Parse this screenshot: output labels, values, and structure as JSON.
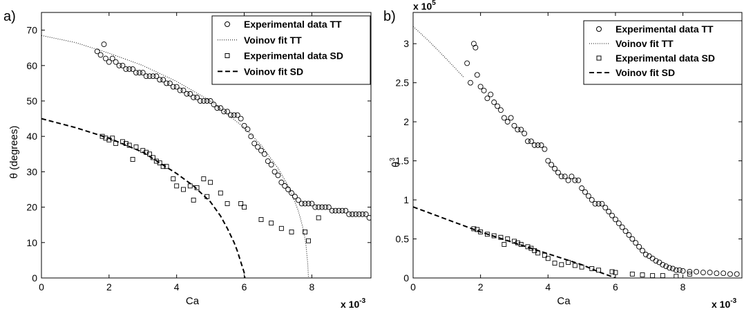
{
  "chart_data": [
    {
      "type": "scatter",
      "panel_label": "a)",
      "xlabel": "Ca",
      "ylabel": "θ (degrees)",
      "x_exponent": "x 10",
      "x_exponent_power": "-3",
      "xlim": [
        0,
        9.75
      ],
      "ylim": [
        0,
        75
      ],
      "xticks": [
        0,
        2,
        4,
        6,
        8
      ],
      "yticks": [
        0,
        10,
        20,
        30,
        40,
        50,
        60,
        70
      ],
      "legend": [
        "Experimental data TT",
        "Voinov fit TT",
        "Experimental data SD",
        "Voinov fit SD"
      ],
      "legend_position": "top-right",
      "series": [
        {
          "name": "Experimental data TT",
          "marker": "circle",
          "x": [
            1.65,
            1.75,
            1.85,
            1.9,
            2.0,
            2.1,
            2.2,
            2.3,
            2.4,
            2.5,
            2.6,
            2.7,
            2.8,
            2.9,
            3.0,
            3.1,
            3.2,
            3.3,
            3.4,
            3.5,
            3.6,
            3.7,
            3.8,
            3.9,
            4.0,
            4.1,
            4.2,
            4.3,
            4.4,
            4.5,
            4.6,
            4.7,
            4.8,
            4.9,
            5.0,
            5.1,
            5.2,
            5.3,
            5.4,
            5.5,
            5.6,
            5.7,
            5.8,
            5.9,
            6.0,
            6.1,
            6.2,
            6.3,
            6.4,
            6.5,
            6.6,
            6.7,
            6.8,
            6.9,
            7.0,
            7.1,
            7.2,
            7.3,
            7.4,
            7.5,
            7.6,
            7.7,
            7.8,
            7.9,
            8.0,
            8.1,
            8.2,
            8.3,
            8.4,
            8.5,
            8.6,
            8.7,
            8.8,
            8.9,
            9.0,
            9.1,
            9.2,
            9.3,
            9.4,
            9.5,
            9.6,
            9.7
          ],
          "y": [
            64,
            63,
            66,
            62,
            61,
            62,
            61,
            60,
            60,
            59,
            59,
            59,
            58,
            58,
            58,
            57,
            57,
            57,
            57,
            56,
            56,
            55,
            55,
            54,
            54,
            53,
            53,
            52,
            52,
            51,
            51,
            50,
            50,
            50,
            50,
            49,
            48,
            48,
            47,
            47,
            46,
            46,
            46,
            45,
            43,
            42,
            40,
            38,
            37,
            36,
            35,
            33,
            32,
            30,
            29,
            27,
            26,
            25,
            24,
            23,
            22,
            21,
            21,
            21,
            21,
            20,
            20,
            20,
            20,
            20,
            19,
            19,
            19,
            19,
            19,
            18,
            18,
            18,
            18,
            18,
            18,
            17
          ]
        },
        {
          "name": "Voinov fit TT",
          "line": "dotted",
          "x": [
            0,
            1,
            2,
            3,
            4,
            5,
            6,
            6.5,
            7,
            7.3,
            7.5,
            7.6,
            7.7,
            7.75,
            7.8,
            7.83,
            7.86,
            7.88,
            7.9
          ],
          "y": [
            68.5,
            66.5,
            63.5,
            60,
            55.5,
            50,
            42.5,
            37.5,
            31,
            26,
            21.5,
            19,
            15.5,
            13.5,
            11,
            9,
            6,
            4,
            0
          ]
        },
        {
          "name": "Experimental data SD",
          "marker": "square",
          "x": [
            1.8,
            1.9,
            2.0,
            2.1,
            2.2,
            2.4,
            2.5,
            2.6,
            2.7,
            2.8,
            3.0,
            3.1,
            3.2,
            3.3,
            3.4,
            3.5,
            3.6,
            3.7,
            3.9,
            4.0,
            4.2,
            4.4,
            4.5,
            4.6,
            4.8,
            4.9,
            5.0,
            5.3,
            5.5,
            5.9,
            6.0,
            6.5,
            6.8,
            7.1,
            7.4,
            7.8,
            7.9,
            8.2
          ],
          "y": [
            40,
            39.5,
            39,
            39.5,
            38,
            38.5,
            38,
            37.5,
            33.5,
            37,
            36,
            35.5,
            35,
            34,
            33,
            32.5,
            31.5,
            31.5,
            28,
            26,
            25,
            26,
            22,
            25.5,
            28,
            23,
            27,
            24,
            21,
            21,
            20,
            16.5,
            15.5,
            14,
            13,
            13,
            10.5,
            17
          ]
        },
        {
          "name": "Voinov fit SD",
          "line": "dashed",
          "x": [
            0,
            1,
            2,
            3,
            4,
            4.5,
            5,
            5.3,
            5.5,
            5.7,
            5.8,
            5.9,
            5.95,
            6.0,
            6.02
          ],
          "y": [
            45,
            42.5,
            39.5,
            35.5,
            29.5,
            26,
            21.5,
            17.5,
            14,
            10,
            7.5,
            4.5,
            3,
            1.5,
            0
          ]
        }
      ]
    },
    {
      "type": "scatter",
      "panel_label": "b)",
      "xlabel": "Ca",
      "ylabel": "θ",
      "ylabel_power": "3",
      "x_exponent": "x 10",
      "x_exponent_power": "-3",
      "y_exponent": "x 10",
      "y_exponent_power": "5",
      "xlim": [
        0,
        9.75
      ],
      "ylim": [
        0,
        3.4
      ],
      "xticks": [
        0,
        2,
        4,
        6,
        8
      ],
      "yticks": [
        0,
        0.5,
        1,
        1.5,
        2,
        2.5,
        3
      ],
      "legend": [
        "Experimental data TT",
        "Voinov fit TT",
        "Experimental data SD",
        "Voinov fit SD"
      ],
      "legend_position": "top-right",
      "series": [
        {
          "name": "Experimental data TT",
          "marker": "circle",
          "x": [
            1.6,
            1.7,
            1.8,
            1.85,
            1.9,
            2.0,
            2.1,
            2.2,
            2.3,
            2.4,
            2.5,
            2.6,
            2.7,
            2.8,
            2.9,
            3.0,
            3.1,
            3.2,
            3.3,
            3.4,
            3.5,
            3.6,
            3.7,
            3.8,
            3.9,
            4.0,
            4.1,
            4.2,
            4.3,
            4.4,
            4.5,
            4.6,
            4.7,
            4.8,
            4.9,
            5.0,
            5.1,
            5.2,
            5.3,
            5.4,
            5.5,
            5.6,
            5.7,
            5.8,
            5.9,
            6.0,
            6.1,
            6.2,
            6.3,
            6.4,
            6.5,
            6.6,
            6.7,
            6.8,
            6.9,
            7.0,
            7.1,
            7.2,
            7.3,
            7.4,
            7.5,
            7.6,
            7.7,
            7.8,
            7.9,
            8.0,
            8.2,
            8.4,
            8.6,
            8.8,
            9.0,
            9.2,
            9.4,
            9.6
          ],
          "y": [
            2.75,
            2.5,
            3.0,
            2.95,
            2.6,
            2.45,
            2.4,
            2.3,
            2.35,
            2.25,
            2.2,
            2.15,
            2.05,
            2.0,
            2.05,
            1.95,
            1.9,
            1.9,
            1.85,
            1.75,
            1.75,
            1.7,
            1.7,
            1.7,
            1.65,
            1.5,
            1.45,
            1.4,
            1.35,
            1.3,
            1.3,
            1.25,
            1.3,
            1.25,
            1.25,
            1.15,
            1.1,
            1.05,
            1.0,
            0.95,
            0.95,
            0.95,
            0.9,
            0.85,
            0.8,
            0.75,
            0.7,
            0.65,
            0.6,
            0.55,
            0.5,
            0.45,
            0.4,
            0.35,
            0.3,
            0.28,
            0.25,
            0.22,
            0.2,
            0.17,
            0.15,
            0.13,
            0.12,
            0.1,
            0.1,
            0.09,
            0.08,
            0.08,
            0.07,
            0.07,
            0.06,
            0.06,
            0.05,
            0.05
          ]
        },
        {
          "name": "Voinov fit TT",
          "line": "dotted",
          "x": [
            0,
            0.5,
            1.0,
            1.5
          ],
          "y": [
            3.22,
            3.02,
            2.8,
            2.57
          ]
        },
        {
          "name": "Experimental data SD",
          "marker": "square",
          "x": [
            1.8,
            1.9,
            2.0,
            2.2,
            2.4,
            2.6,
            2.7,
            2.8,
            3.0,
            3.1,
            3.2,
            3.4,
            3.5,
            3.6,
            3.7,
            3.9,
            4.0,
            4.2,
            4.4,
            4.6,
            4.8,
            5.0,
            5.3,
            5.5,
            5.9,
            6.0,
            6.5,
            6.8,
            7.1,
            7.4,
            7.8,
            8.2
          ],
          "y": [
            0.63,
            0.62,
            0.59,
            0.56,
            0.54,
            0.52,
            0.43,
            0.5,
            0.47,
            0.45,
            0.43,
            0.4,
            0.38,
            0.35,
            0.32,
            0.29,
            0.25,
            0.19,
            0.17,
            0.2,
            0.16,
            0.14,
            0.12,
            0.1,
            0.08,
            0.07,
            0.05,
            0.04,
            0.03,
            0.03,
            0.02,
            0.05
          ]
        },
        {
          "name": "Voinov fit SD",
          "line": "dashed",
          "x": [
            0,
            1,
            2,
            3,
            4,
            5,
            5.5,
            6.0
          ],
          "y": [
            0.91,
            0.75,
            0.59,
            0.45,
            0.31,
            0.17,
            0.08,
            0.0
          ]
        }
      ]
    }
  ]
}
